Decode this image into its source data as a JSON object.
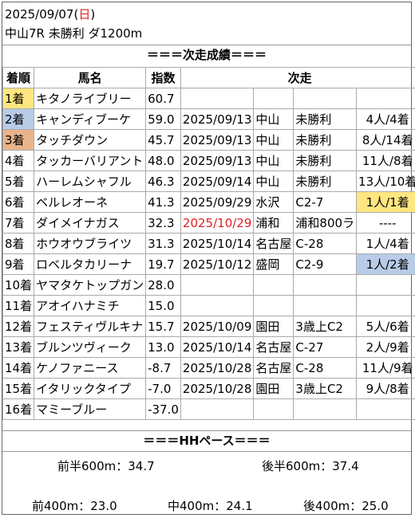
{
  "header": {
    "date": "2025/09/07",
    "weekday_open": "(",
    "weekday": "日",
    "weekday_close": ")",
    "race": "中山7R 未勝利 ダ1200m"
  },
  "next_title": "＝＝＝次走成績＝＝＝",
  "columns": {
    "rank": "着順",
    "name": "馬名",
    "index": "指数",
    "next": "次走"
  },
  "rows": [
    {
      "rank": "1着",
      "name": "キタノライブリー",
      "index": "60.7",
      "date": "",
      "place": "",
      "race": "",
      "result": ""
    },
    {
      "rank": "2着",
      "name": "キャンディブーケ",
      "index": "59.0",
      "date": "2025/09/13",
      "place": "中山",
      "race": "未勝利",
      "result": "4人/4着"
    },
    {
      "rank": "3着",
      "name": "タッチダウン",
      "index": "45.7",
      "date": "2025/09/13",
      "place": "中山",
      "race": "未勝利",
      "result": "8人/14着"
    },
    {
      "rank": "4着",
      "name": "タッカーバリアント",
      "index": "48.0",
      "date": "2025/09/13",
      "place": "中山",
      "race": "未勝利",
      "result": "11人/8着"
    },
    {
      "rank": "5着",
      "name": "ハーレムシャフル",
      "index": "46.3",
      "date": "2025/09/14",
      "place": "中山",
      "race": "未勝利",
      "result": "13人/10着"
    },
    {
      "rank": "6着",
      "name": "ベルレオーネ",
      "index": "41.3",
      "date": "2025/09/29",
      "place": "水沢",
      "race": "C2-7",
      "result": "1人/1着"
    },
    {
      "rank": "7着",
      "name": "ダイメイナガス",
      "index": "32.3",
      "date": "2025/10/29",
      "place": "浦和",
      "race": "浦和800ラ",
      "result": "----"
    },
    {
      "rank": "8着",
      "name": "ホウオウブライツ",
      "index": "31.3",
      "date": "2025/10/14",
      "place": "名古屋",
      "race": "C-28",
      "result": "1人/4着"
    },
    {
      "rank": "9着",
      "name": "ロベルタカリーナ",
      "index": "19.7",
      "date": "2025/10/12",
      "place": "盛岡",
      "race": "C2-9",
      "result": "1人/2着"
    },
    {
      "rank": "10着",
      "name": "ヤマタケトップガン",
      "index": "28.0",
      "date": "",
      "place": "",
      "race": "",
      "result": ""
    },
    {
      "rank": "11着",
      "name": "アオイハナミチ",
      "index": "15.0",
      "date": "",
      "place": "",
      "race": "",
      "result": ""
    },
    {
      "rank": "12着",
      "name": "フェスティヴルキナ",
      "index": "15.7",
      "date": "2025/10/09",
      "place": "園田",
      "race": "3歳上C2",
      "result": "5人/6着"
    },
    {
      "rank": "13着",
      "name": "ブルンツヴィーク",
      "index": "13.0",
      "date": "2025/10/14",
      "place": "名古屋",
      "race": "C-27",
      "result": "2人/9着"
    },
    {
      "rank": "14着",
      "name": "ケノファニース",
      "index": "-8.7",
      "date": "2025/10/28",
      "place": "名古屋",
      "race": "C-28",
      "result": "11人/9着"
    },
    {
      "rank": "15着",
      "name": "イタリックタイプ",
      "index": "-7.0",
      "date": "2025/10/28",
      "place": "園田",
      "race": "3歳上C2",
      "result": "9人/8着"
    },
    {
      "rank": "16着",
      "name": "マミーブルー",
      "index": "-37.0",
      "date": "",
      "place": "",
      "race": "",
      "result": ""
    }
  ],
  "pace_title": "＝＝＝HHペース＝＝＝",
  "pace": {
    "first600": "前半600m：34.7",
    "last600": "後半600m：37.4",
    "first400": "前400m：23.0",
    "mid400": "中400m：24.1",
    "last400": "後400m：25.0"
  },
  "colors": {
    "yellow": "#ffe680",
    "blue": "#b8cce8",
    "orange": "#e9b48a",
    "red": "#e02020"
  }
}
